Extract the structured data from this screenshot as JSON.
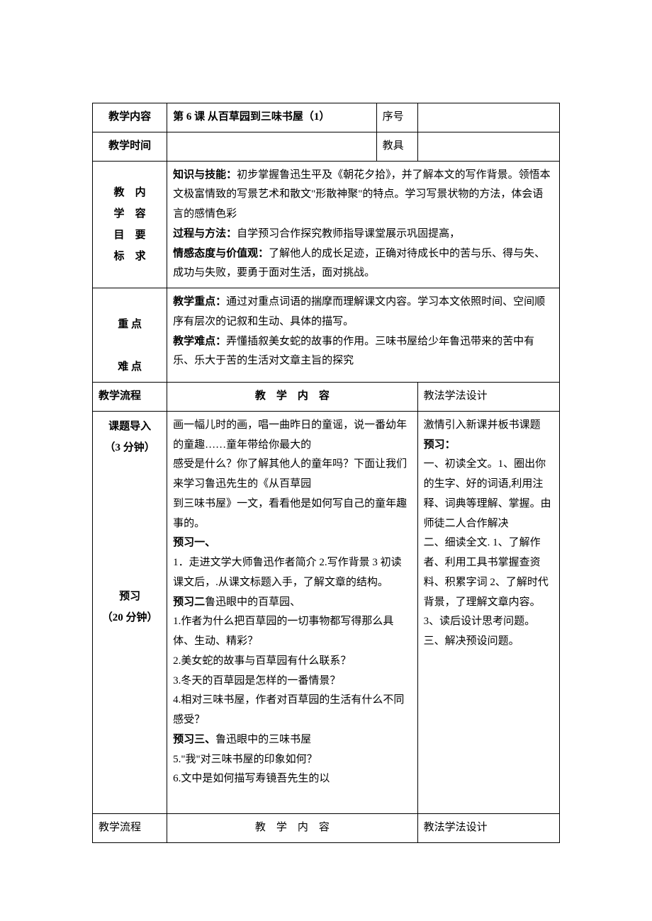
{
  "headers": {
    "teaching_content": "教学内容",
    "lesson_title": "第 6 课 从百草园到三味书屋（1）",
    "serial": "序号",
    "teaching_time": "教学时间",
    "tools": "教具",
    "objectives_label_l1": "教",
    "objectives_label_l2": "学",
    "objectives_label_l3": "目",
    "objectives_label_l4": "标",
    "objectives_label_r1": "内",
    "objectives_label_r2": "容",
    "objectives_label_r3": "要",
    "objectives_label_r4": "求",
    "focus_label_l1": "重 点",
    "focus_label_l2": "难 点",
    "teaching_flow": "教学流程",
    "content_header": "教　学　内　容",
    "method_header": "教法学法设计"
  },
  "objectives": {
    "knowledge_label": "知识与技能：",
    "knowledge_text": "初步掌握鲁迅生平及《朝花夕拾》，并了解本文的写作背景。领悟本文极富情致的写景艺术和散文\"形散神聚\"的特点。学习写景状物的方法，体会语言的感情色彩",
    "process_label": "过程与方法：",
    "process_text": "自学预习合作探究教师指导课堂展示巩固提高，",
    "emotion_label": "情感态度与价值观：",
    "emotion_text": "了解他人的成长足迹，正确对待成长中的苦与乐、得与失、成功与失败，要勇于面对生活，面对挑战。"
  },
  "focus": {
    "key_label": "教学重点：",
    "key_text": "通过对重点词语的揣摩而理解课文内容。学习本文依照时间、空间顺序有层次的记叙和生动、具体的描写。",
    "difficulty_label": "教学难点：",
    "difficulty_text": "弄懂插叙美女蛇的故事的作用。三味书屋给少年鲁迅带来的苦中有乐、乐大于苦的生活对文章主旨的探究"
  },
  "flow": {
    "intro_label": "课题导入",
    "intro_time": "（3 分钟）",
    "preview_label": "预习",
    "preview_time": "（20 分钟）",
    "intro_content_1": "画一幅儿时的画，唱一曲昨日的童谣，说一番幼年的童趣……童年带给你最大的",
    "intro_content_2": "感受是什么？你了解其他人的童年吗？下面让我们来学习鲁迅先生的《从百草园",
    "intro_content_3": "到三味书屋》一文，看看他是如何写自己的童年趣事的。",
    "preview1_label": "预习一、",
    "preview1_1": "1．走进文学大师鲁迅作者简介 2.写作背景 3 初读课文后，.从课文标题入手，了解文章的结构。",
    "preview2_label": "预习二",
    "preview2_title": "鲁迅眼中的百草园、",
    "preview2_q1": "1.作者为什么把百草园的一切事物都写得那么具体、生动、精彩？",
    "preview2_q2": "2.美女蛇的故事与百草园有什么联系？",
    "preview2_q3": "3.冬天的百草园是怎样的一番情景？",
    "preview2_q4": "4.相对三味书屋，作者对百草园的生活有什么不同感受？",
    "preview3_label": "预习三、",
    "preview3_title": "鲁迅眼中的三味书屋",
    "preview3_q5": "5.\"我\"对三味书屋的印象如何？",
    "preview3_q6": "6.文中是如何描写寿镜吾先生的以"
  },
  "method": {
    "intro_method": "激情引入新课并板书课题",
    "preview_label": "预习：",
    "preview_m1": "一、初读全文。1、圈出你的生字、好的词语,利用注释、词典等理解、掌握。由师徒二人合作解决",
    "preview_m2": "二、细读全文. 1、了解作者、利用工具书掌握查资料、积累字词 2、了解时代背景，了理解文章内容。3、读后设计思考问题。三、解决预设问题。"
  }
}
